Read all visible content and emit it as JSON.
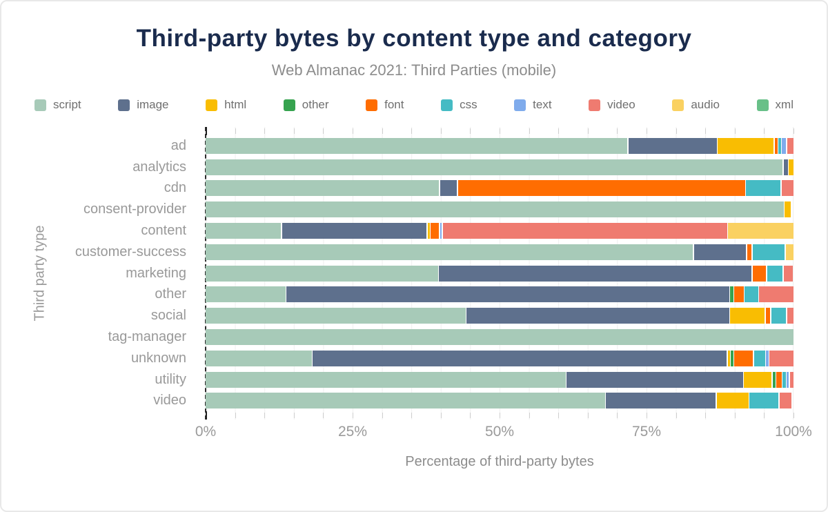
{
  "chart_data": {
    "type": "bar",
    "variant": "horizontal-stacked",
    "title": "Third-party bytes by content type and category",
    "subtitle": "Web Almanac 2021: Third Parties (mobile)",
    "xlabel": "Percentage of third-party bytes",
    "ylabel": "Third party type",
    "xlim": [
      0,
      100
    ],
    "grid": "vertical-minor-5pct",
    "legend_position": "top",
    "xticks": [
      {
        "v": 0,
        "label": "0%"
      },
      {
        "v": 25,
        "label": "25%"
      },
      {
        "v": 50,
        "label": "50%"
      },
      {
        "v": 75,
        "label": "75%"
      },
      {
        "v": 100,
        "label": "100%"
      }
    ],
    "minor_tick_step": 5,
    "categories": [
      "ad",
      "analytics",
      "cdn",
      "consent-provider",
      "content",
      "customer-success",
      "marketing",
      "other",
      "social",
      "tag-manager",
      "unknown",
      "utility",
      "video"
    ],
    "series": [
      {
        "name": "script",
        "color": "#a7cab8",
        "values": [
          72.5,
          98.2,
          39.7,
          98.3,
          12.9,
          83.2,
          39.5,
          13.6,
          44.4,
          100,
          18.2,
          61.7,
          67.9
        ]
      },
      {
        "name": "image",
        "color": "#5e708d",
        "values": [
          15.2,
          0.7,
          2.9,
          0,
          24.7,
          8.9,
          53.2,
          75.3,
          44.8,
          0,
          70.9,
          30.2,
          18.7
        ]
      },
      {
        "name": "html",
        "color": "#f9bd02",
        "values": [
          9.6,
          0.8,
          0,
          1.1,
          0.4,
          0,
          0,
          0,
          5.9,
          0,
          0.4,
          4.7,
          5.4
        ]
      },
      {
        "name": "other",
        "color": "#36a34f",
        "values": [
          0,
          0,
          0,
          0,
          0,
          0,
          0,
          0.5,
          0,
          0,
          0.4,
          0.5,
          0
        ]
      },
      {
        "name": "font",
        "color": "#ff6d01",
        "values": [
          0.5,
          0,
          48.8,
          0,
          1.4,
          0.8,
          2.3,
          1.6,
          0.8,
          0,
          3.2,
          0.9,
          0
        ]
      },
      {
        "name": "css",
        "color": "#45bbc4",
        "values": [
          0.4,
          0,
          5.9,
          0,
          0,
          5.5,
          2.6,
          2.3,
          2.5,
          0,
          1.9,
          0.5,
          4.9
        ]
      },
      {
        "name": "text",
        "color": "#7fabec",
        "values": [
          0.7,
          0,
          0,
          0,
          0.3,
          0,
          0,
          0,
          0,
          0,
          0.4,
          0.4,
          0
        ]
      },
      {
        "name": "video",
        "color": "#ef7b70",
        "values": [
          1.1,
          0,
          2.0,
          0,
          48.6,
          0,
          1.6,
          5.8,
          1.1,
          0,
          4.1,
          0.6,
          2.1
        ]
      },
      {
        "name": "audio",
        "color": "#fad161",
        "values": [
          0,
          0,
          0,
          0,
          11.2,
          1.3,
          0,
          0,
          0,
          0,
          0,
          0,
          0
        ]
      },
      {
        "name": "xml",
        "color": "#68c088",
        "values": [
          0,
          0,
          0,
          0,
          0,
          0,
          0,
          0,
          0,
          0,
          0,
          0,
          0
        ]
      }
    ],
    "colors": {
      "title": "#1a2b4d",
      "subtitle": "#8c8c8c",
      "axis_text": "#9a9a9a",
      "legend_text": "#6f6f6f",
      "gridline": "#efefef",
      "axis_line": "#2a2a2a"
    }
  }
}
